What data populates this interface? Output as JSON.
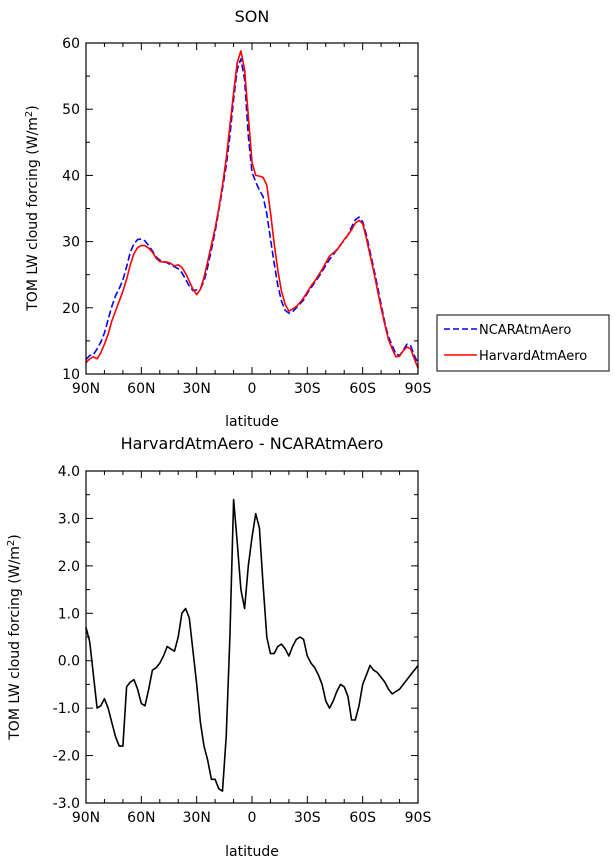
{
  "chart_data": [
    {
      "type": "line",
      "title": "SON",
      "xlabel": "latitude",
      "ylabel": "TOM LW cloud forcing (W/m",
      "ylabel_sup": "2",
      "ylabel_tail": ")",
      "xlim": [
        90,
        -90
      ],
      "ylim": [
        10,
        60
      ],
      "xticks": [
        90,
        60,
        30,
        0,
        -30,
        -60,
        -90
      ],
      "xtick_labels": [
        "90N",
        "60N",
        "30N",
        "0",
        "30S",
        "60S",
        "90S"
      ],
      "yticks": [
        10,
        20,
        30,
        40,
        50,
        60
      ],
      "ytick_labels": [
        "10",
        "20",
        "30",
        "40",
        "50",
        "60"
      ],
      "legend_position": "right, outside plot",
      "series": [
        {
          "name": "NCARAtmAero",
          "color": "#0000ff",
          "style": "dashed",
          "x": [
            90,
            88,
            86,
            84,
            82,
            80,
            78,
            76,
            74,
            72,
            70,
            68,
            66,
            64,
            62,
            60,
            58,
            56,
            54,
            52,
            50,
            48,
            46,
            44,
            42,
            40,
            38,
            36,
            34,
            32,
            30,
            28,
            26,
            24,
            22,
            20,
            18,
            16,
            14,
            12,
            10,
            8,
            6,
            4,
            2,
            0,
            -2,
            -4,
            -6,
            -8,
            -10,
            -12,
            -14,
            -16,
            -18,
            -20,
            -22,
            -24,
            -26,
            -28,
            -30,
            -32,
            -34,
            -36,
            -38,
            -40,
            -42,
            -44,
            -46,
            -48,
            -50,
            -52,
            -54,
            -56,
            -58,
            -60,
            -62,
            -64,
            -66,
            -68,
            -70,
            -72,
            -74,
            -76,
            -78,
            -80,
            -82,
            -84,
            -86,
            -88,
            -90
          ],
          "values": [
            12.2,
            12.8,
            12.9,
            13.8,
            14.8,
            16.2,
            18.2,
            20.2,
            21.8,
            22.9,
            24.2,
            26.2,
            28.4,
            29.7,
            30.3,
            30.4,
            30.1,
            29.4,
            28.6,
            27.7,
            27.2,
            27.0,
            26.8,
            26.5,
            26.2,
            25.9,
            25.3,
            24.3,
            23.3,
            22.6,
            22.7,
            22.9,
            24.0,
            26.2,
            28.8,
            31.5,
            34.7,
            38.0,
            41.5,
            46.0,
            51.5,
            56.0,
            57.6,
            54.5,
            46.0,
            40.5,
            39.0,
            37.8,
            36.8,
            34.2,
            30.5,
            26.8,
            23.4,
            21.0,
            19.6,
            19.2,
            19.4,
            20.0,
            20.6,
            21.2,
            22.2,
            23.0,
            23.8,
            24.6,
            25.5,
            26.4,
            27.3,
            28.0,
            28.8,
            29.5,
            30.2,
            31.0,
            32.2,
            33.3,
            33.7,
            33.0,
            31.0,
            28.5,
            26.0,
            23.3,
            20.5,
            17.8,
            15.6,
            14.3,
            13.0,
            12.8,
            13.6,
            14.5,
            14.3,
            12.8,
            11.6
          ]
        },
        {
          "name": "HarvardAtmAero",
          "color": "#ff0000",
          "style": "solid",
          "x": [
            90,
            88,
            86,
            84,
            82,
            80,
            78,
            76,
            74,
            72,
            70,
            68,
            66,
            64,
            62,
            60,
            58,
            56,
            54,
            52,
            50,
            48,
            46,
            44,
            42,
            40,
            38,
            36,
            34,
            32,
            30,
            28,
            26,
            24,
            22,
            20,
            18,
            16,
            14,
            12,
            10,
            8,
            6,
            4,
            2,
            0,
            -2,
            -4,
            -6,
            -8,
            -10,
            -12,
            -14,
            -16,
            -18,
            -20,
            -22,
            -24,
            -26,
            -28,
            -30,
            -32,
            -34,
            -36,
            -38,
            -40,
            -42,
            -44,
            -46,
            -48,
            -50,
            -52,
            -54,
            -56,
            -58,
            -60,
            -62,
            -64,
            -66,
            -68,
            -70,
            -72,
            -74,
            -76,
            -78,
            -80,
            -82,
            -84,
            -86,
            -88,
            -90
          ],
          "values": [
            11.7,
            12.3,
            12.6,
            12.3,
            13.2,
            14.5,
            16.0,
            18.0,
            19.5,
            21.0,
            22.5,
            24.3,
            26.5,
            28.2,
            29.1,
            29.4,
            29.4,
            29.0,
            28.4,
            27.5,
            27.0,
            26.9,
            26.9,
            26.7,
            26.3,
            26.5,
            26.1,
            25.2,
            24.0,
            22.8,
            22.0,
            22.8,
            24.6,
            27.0,
            29.5,
            32.0,
            35.0,
            38.5,
            42.5,
            47.5,
            52.5,
            57.0,
            58.8,
            56.0,
            49.0,
            42.0,
            40.0,
            39.9,
            39.7,
            38.5,
            34.5,
            29.8,
            25.7,
            22.5,
            20.5,
            19.5,
            19.8,
            20.2,
            20.8,
            21.5,
            22.4,
            23.3,
            24.0,
            24.9,
            25.8,
            26.8,
            27.8,
            28.3,
            28.7,
            29.5,
            30.3,
            31.0,
            31.8,
            32.8,
            33.2,
            32.7,
            30.5,
            28.0,
            25.5,
            22.7,
            20.0,
            17.5,
            15.2,
            13.8,
            12.6,
            12.7,
            13.5,
            14.1,
            13.8,
            12.3,
            10.9
          ]
        }
      ]
    },
    {
      "type": "line",
      "title": "HarvardAtmAero - NCARAtmAero",
      "xlabel": "latitude",
      "ylabel": "TOM LW cloud forcing (W/m",
      "ylabel_sup": "2",
      "ylabel_tail": ")",
      "xlim": [
        90,
        -90
      ],
      "ylim": [
        -3.0,
        4.0
      ],
      "xticks": [
        90,
        60,
        30,
        0,
        -30,
        -60,
        -90
      ],
      "xtick_labels": [
        "90N",
        "60N",
        "30N",
        "0",
        "30S",
        "60S",
        "90S"
      ],
      "yticks": [
        -3,
        -2,
        -1,
        0,
        1,
        2,
        3,
        4
      ],
      "ytick_labels": [
        "-3.0",
        "-2.0",
        "-1.0",
        "0.0",
        "1.0",
        "2.0",
        "3.0",
        "4.0"
      ],
      "series": [
        {
          "color": "#000000",
          "style": "solid",
          "x": [
            90,
            88,
            86,
            84,
            82,
            80,
            78,
            76,
            74,
            72,
            70,
            68,
            66,
            64,
            62,
            60,
            58,
            56,
            54,
            52,
            50,
            48,
            46,
            44,
            42,
            40,
            38,
            36,
            34,
            32,
            30,
            28,
            26,
            24,
            22,
            20,
            18,
            16,
            14,
            12,
            10,
            8,
            6,
            4,
            2,
            0,
            -2,
            -4,
            -6,
            -8,
            -10,
            -12,
            -14,
            -16,
            -18,
            -20,
            -22,
            -24,
            -26,
            -28,
            -30,
            -32,
            -34,
            -36,
            -38,
            -40,
            -42,
            -44,
            -46,
            -48,
            -50,
            -52,
            -54,
            -56,
            -58,
            -60,
            -62,
            -64,
            -66,
            -68,
            -70,
            -72,
            -74,
            -76,
            -78,
            -80,
            -82,
            -84,
            -86,
            -88,
            -90
          ],
          "values": [
            0.7,
            0.4,
            -0.3,
            -1.0,
            -0.95,
            -0.8,
            -1.0,
            -1.3,
            -1.6,
            -1.8,
            -1.8,
            -0.55,
            -0.45,
            -0.4,
            -0.6,
            -0.9,
            -0.95,
            -0.6,
            -0.2,
            -0.15,
            -0.05,
            0.1,
            0.3,
            0.25,
            0.2,
            0.5,
            1.0,
            1.1,
            0.9,
            0.2,
            -0.5,
            -1.3,
            -1.8,
            -2.1,
            -2.5,
            -2.5,
            -2.7,
            -2.75,
            -1.6,
            0.5,
            3.4,
            2.5,
            1.5,
            1.1,
            2.0,
            2.6,
            3.1,
            2.8,
            1.6,
            0.5,
            0.15,
            0.15,
            0.3,
            0.35,
            0.25,
            0.1,
            0.3,
            0.45,
            0.5,
            0.45,
            0.1,
            -0.05,
            -0.15,
            -0.3,
            -0.5,
            -0.85,
            -1.0,
            -0.85,
            -0.65,
            -0.5,
            -0.55,
            -0.75,
            -1.25,
            -1.25,
            -0.95,
            -0.5,
            -0.3,
            -0.1,
            -0.2,
            -0.25,
            -0.35,
            -0.45,
            -0.6,
            -0.7,
            -0.65,
            -0.6,
            -0.5,
            -0.4,
            -0.3,
            -0.2,
            -0.1
          ]
        }
      ]
    }
  ]
}
